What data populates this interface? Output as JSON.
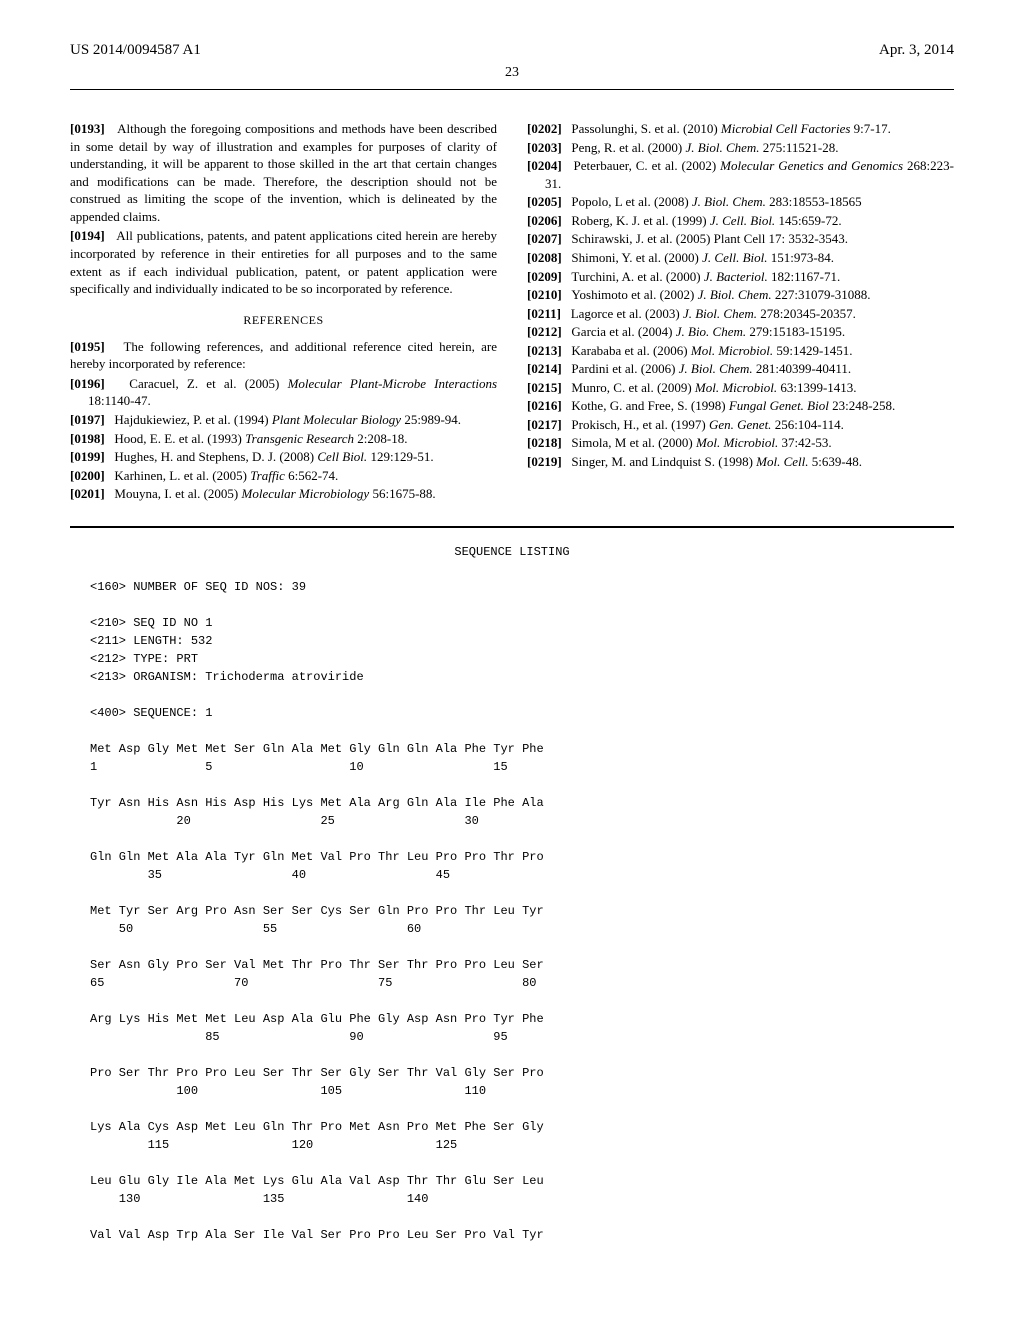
{
  "header": {
    "patent_id": "US 2014/0094587 A1",
    "date": "Apr. 3, 2014",
    "page_number": "23"
  },
  "left_column": {
    "paragraphs": [
      {
        "num": "[0193]",
        "text": "Although the foregoing compositions and methods have been described in some detail by way of illustration and examples for purposes of clarity of understanding, it will be apparent to those skilled in the art that certain changes and modifications can be made. Therefore, the description should not be construed as limiting the scope of the invention, which is delineated by the appended claims."
      },
      {
        "num": "[0194]",
        "text": "All publications, patents, and patent applications cited herein are hereby incorporated by reference in their entireties for all purposes and to the same extent as if each individual publication, patent, or patent application were specifically and individually indicated to be so incorporated by reference."
      }
    ],
    "refs_heading": "REFERENCES",
    "refs_intro": {
      "num": "[0195]",
      "text": "The following references, and additional reference cited herein, are hereby incorporated by reference:"
    },
    "references": [
      {
        "num": "[0196]",
        "author": "Caracuel, Z. et al. (2005) ",
        "ital": "Molecular Plant-Microbe Interactions",
        "rest": " 18:1140-47."
      },
      {
        "num": "[0197]",
        "author": "Hajdukiewiez, P. et al. (1994) ",
        "ital": "Plant Molecular Biology",
        "rest": " 25:989-94."
      },
      {
        "num": "[0198]",
        "author": "Hood, E. E. et al. (1993) ",
        "ital": "Transgenic Research",
        "rest": " 2:208-18."
      },
      {
        "num": "[0199]",
        "author": "Hughes, H. and Stephens, D. J. (2008) ",
        "ital": "Cell Biol.",
        "rest": " 129:129-51."
      },
      {
        "num": "[0200]",
        "author": "Karhinen, L. et al. (2005) ",
        "ital": "Traffic",
        "rest": " 6:562-74."
      },
      {
        "num": "[0201]",
        "author": "Mouyna, I. et al. (2005) ",
        "ital": "Molecular Microbiology",
        "rest": " 56:1675-88."
      }
    ]
  },
  "right_column": {
    "references": [
      {
        "num": "[0202]",
        "author": "Passolunghi, S. et al. (2010) ",
        "ital": "Microbial Cell Factories",
        "rest": " 9:7-17."
      },
      {
        "num": "[0203]",
        "author": "Peng, R. et al. (2000) ",
        "ital": "J. Biol. Chem.",
        "rest": " 275:11521-28."
      },
      {
        "num": "[0204]",
        "author": "Peterbauer, C. et al. (2002) ",
        "ital": "Molecular Genetics and Genomics",
        "rest": " 268:223-31."
      },
      {
        "num": "[0205]",
        "author": "Popolo, L et al. (2008) ",
        "ital": "J. Biol. Chem.",
        "rest": " 283:18553-18565"
      },
      {
        "num": "[0206]",
        "author": "Roberg, K. J. et al. (1999) ",
        "ital": "J. Cell. Biol.",
        "rest": " 145:659-72."
      },
      {
        "num": "[0207]",
        "author": "Schirawski, J. et al. (2005) Plant Cell 17: 3532-3543.",
        "ital": "",
        "rest": ""
      },
      {
        "num": "[0208]",
        "author": "Shimoni, Y. et al. (2000) ",
        "ital": "J. Cell. Biol.",
        "rest": " 151:973-84."
      },
      {
        "num": "[0209]",
        "author": "Turchini, A. et al. (2000) ",
        "ital": "J. Bacteriol.",
        "rest": " 182:1167-71."
      },
      {
        "num": "[0210]",
        "author": "Yoshimoto et al. (2002) ",
        "ital": "J. Biol. Chem.",
        "rest": " 227:31079-31088."
      },
      {
        "num": "[0211]",
        "author": "Lagorce et al. (2003) ",
        "ital": "J. Biol. Chem.",
        "rest": " 278:20345-20357."
      },
      {
        "num": "[0212]",
        "author": "Garcia et al. (2004) ",
        "ital": "J. Bio. Chem.",
        "rest": " 279:15183-15195."
      },
      {
        "num": "[0213]",
        "author": "Karababa et al. (2006) ",
        "ital": "Mol. Microbiol.",
        "rest": " 59:1429-1451."
      },
      {
        "num": "[0214]",
        "author": "Pardini et al. (2006) ",
        "ital": "J. Biol. Chem.",
        "rest": " 281:40399-40411."
      },
      {
        "num": "[0215]",
        "author": "Munro, C. et al. (2009) ",
        "ital": "Mol. Microbiol.",
        "rest": " 63:1399-1413."
      },
      {
        "num": "[0216]",
        "author": "Kothe, G. and Free, S. (1998) ",
        "ital": "Fungal Genet. Biol",
        "rest": " 23:248-258."
      },
      {
        "num": "[0217]",
        "author": "Prokisch, H., et al. (1997) ",
        "ital": "Gen. Genet.",
        "rest": " 256:104-114."
      },
      {
        "num": "[0218]",
        "author": "Simola, M et al. (2000) ",
        "ital": "Mol. Microbiol.",
        "rest": " 37:42-53."
      },
      {
        "num": "[0219]",
        "author": "Singer, M. and Lindquist S. (1998) ",
        "ital": "Mol. Cell.",
        "rest": " 5:639-48."
      }
    ]
  },
  "sequence_listing": {
    "title": "SEQUENCE LISTING",
    "meta": [
      "<160> NUMBER OF SEQ ID NOS: 39",
      "",
      "<210> SEQ ID NO 1",
      "<211> LENGTH: 532",
      "<212> TYPE: PRT",
      "<213> ORGANISM: Trichoderma atroviride",
      "",
      "<400> SEQUENCE: 1",
      ""
    ],
    "rows": [
      {
        "seq": "Met Asp Gly Met Met Ser Gln Ala Met Gly Gln Gln Ala Phe Tyr Phe",
        "nums": "1               5                   10                  15"
      },
      {
        "seq": "Tyr Asn His Asn His Asp His Lys Met Ala Arg Gln Ala Ile Phe Ala",
        "nums": "            20                  25                  30"
      },
      {
        "seq": "Gln Gln Met Ala Ala Tyr Gln Met Val Pro Thr Leu Pro Pro Thr Pro",
        "nums": "        35                  40                  45"
      },
      {
        "seq": "Met Tyr Ser Arg Pro Asn Ser Ser Cys Ser Gln Pro Pro Thr Leu Tyr",
        "nums": "    50                  55                  60"
      },
      {
        "seq": "Ser Asn Gly Pro Ser Val Met Thr Pro Thr Ser Thr Pro Pro Leu Ser",
        "nums": "65                  70                  75                  80"
      },
      {
        "seq": "Arg Lys His Met Met Leu Asp Ala Glu Phe Gly Asp Asn Pro Tyr Phe",
        "nums": "                85                  90                  95"
      },
      {
        "seq": "Pro Ser Thr Pro Pro Leu Ser Thr Ser Gly Ser Thr Val Gly Ser Pro",
        "nums": "            100                 105                 110"
      },
      {
        "seq": "Lys Ala Cys Asp Met Leu Gln Thr Pro Met Asn Pro Met Phe Ser Gly",
        "nums": "        115                 120                 125"
      },
      {
        "seq": "Leu Glu Gly Ile Ala Met Lys Glu Ala Val Asp Thr Thr Glu Ser Leu",
        "nums": "    130                 135                 140"
      },
      {
        "seq": "Val Val Asp Trp Ala Ser Ile Val Ser Pro Pro Leu Ser Pro Val Tyr",
        "nums": ""
      }
    ]
  }
}
